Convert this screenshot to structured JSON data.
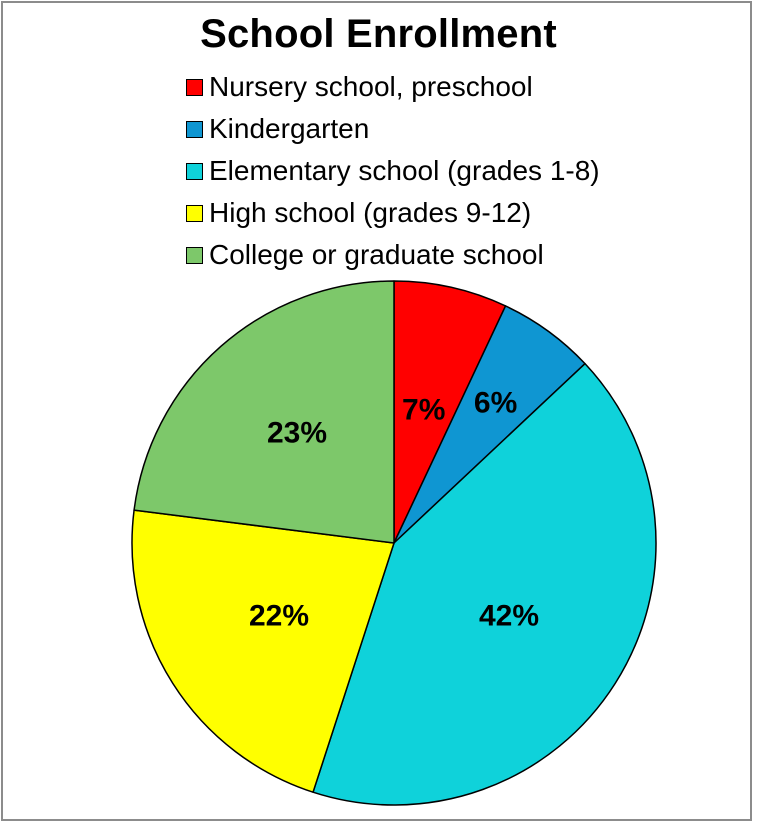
{
  "chart_data": {
    "type": "pie",
    "title": "School Enrollment",
    "categories": [
      "Nursery school, preschool",
      "Kindergarten",
      "Elementary school (grades 1-8)",
      "High school (grades 9-12)",
      "College or graduate school"
    ],
    "values": [
      7,
      6,
      42,
      22,
      23
    ],
    "value_labels": [
      "7%",
      "6%",
      "42%",
      "22%",
      "23%"
    ],
    "colors": [
      "#ff0000",
      "#0f96d2",
      "#0fd2da",
      "#ffff00",
      "#7dc86a"
    ],
    "legend_position": "top",
    "start_angle": "12 o'clock",
    "direction": "clockwise"
  }
}
